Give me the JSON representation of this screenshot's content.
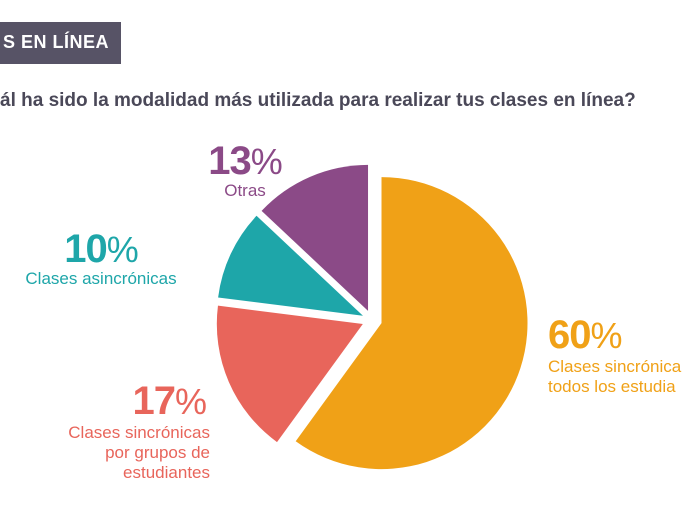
{
  "header": {
    "banner_text": "S EN LÍNEA",
    "question": "ál ha sido la modalidad más utilizada para realizar tus clases en línea?"
  },
  "colors": {
    "banner_bg": "#575366",
    "text_dark": "#4a4858",
    "otras": "#8b4a87",
    "asincronicas": "#1ea6a9",
    "sincronicas_grupos": "#e8655b",
    "sincronicas_todos": "#f0a117"
  },
  "chart_data": {
    "type": "pie",
    "title": "ál ha sido la modalidad más utilizada para realizar tus clases en línea?",
    "slices": [
      {
        "key": "todos",
        "label": "Clases sincrónica todos los estudia",
        "label_lines": [
          "Clases sincrónica",
          "todos los estudia"
        ],
        "value": 60,
        "pct_text": "60",
        "color": "#f0a117"
      },
      {
        "key": "grupos",
        "label": "Clases sincrónicas por grupos de estudiantes",
        "label_lines": [
          "Clases sincrónicas",
          "por grupos de",
          "estudiantes"
        ],
        "value": 17,
        "pct_text": "17",
        "color": "#e8655b"
      },
      {
        "key": "asinc",
        "label": "Clases asincrónicas",
        "label_lines": [
          "Clases asincrónicas"
        ],
        "value": 10,
        "pct_text": "10",
        "color": "#1ea6a9"
      },
      {
        "key": "otras",
        "label": "Otras",
        "label_lines": [
          "Otras"
        ],
        "value": 13,
        "pct_text": "13",
        "color": "#8b4a87"
      }
    ],
    "percent_sign": "%"
  }
}
